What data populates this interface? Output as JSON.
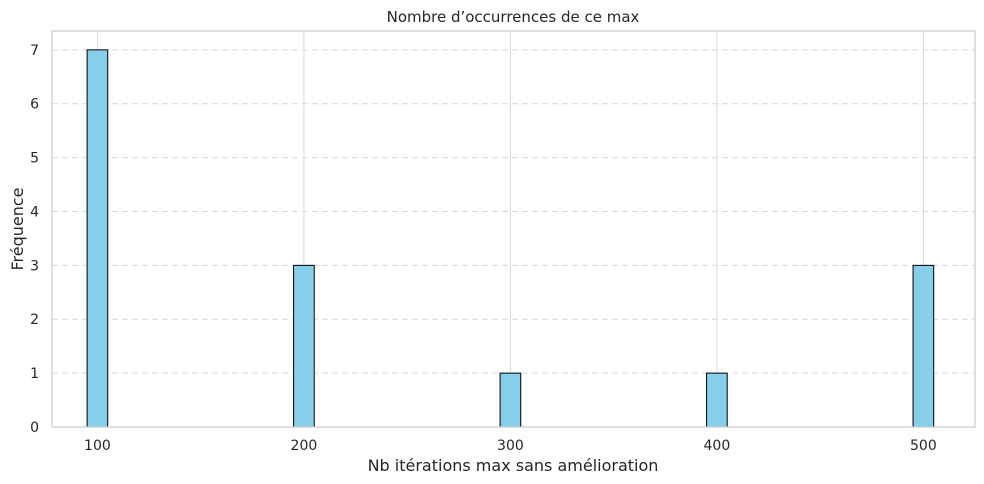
{
  "chart_data": {
    "type": "bar",
    "title": "Nombre d’occurrences de ce max",
    "xlabel": "Nb itérations max sans amélioration",
    "ylabel": "Fréquence",
    "x": [
      100,
      200,
      300,
      400,
      500
    ],
    "values": [
      7,
      3,
      1,
      1,
      3
    ],
    "bar_width": 10,
    "xlim": [
      78,
      525
    ],
    "ylim": [
      0,
      7.35
    ],
    "xticks": [
      100,
      200,
      300,
      400,
      500
    ],
    "yticks": [
      0,
      1,
      2,
      3,
      4,
      5,
      6,
      7
    ],
    "grid": {
      "x": "solid",
      "y": "dashed"
    },
    "colors": {
      "bar_fill": "#87ceeb",
      "bar_edge": "#000000",
      "grid": "#d9d9d9",
      "spine": "#cccccc",
      "text": "#262626"
    }
  }
}
